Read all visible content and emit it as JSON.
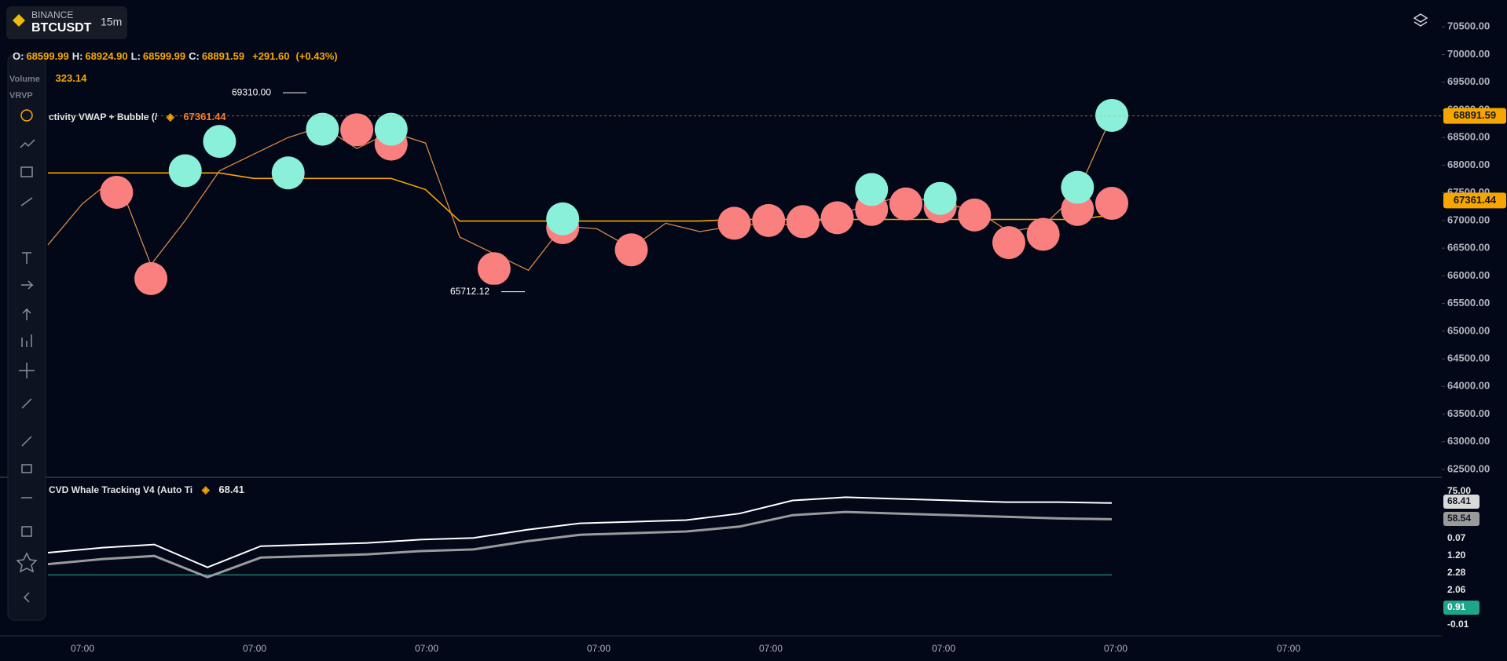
{
  "header": {
    "exchange": "BINANCE",
    "symbol": "BTCUSDT",
    "interval": "15m"
  },
  "legend": {
    "ohlc": [
      {
        "key": "O:",
        "value": "68599.99"
      },
      {
        "key": "H:",
        "value": "68924.90"
      },
      {
        "key": "L:",
        "value": "68599.99"
      },
      {
        "key": "C:",
        "value": "68891.59"
      }
    ],
    "change": "+291.60",
    "change_pct": "(+0.43%)",
    "volume_label": "Volume",
    "volume": "323.14",
    "vrvp": "VRVP",
    "indicator": "ctivity VWAP + Bubble (/",
    "indicator_value": "67361.44"
  },
  "price_chart": {
    "ylim": [
      62358,
      70986
    ],
    "yticks": [
      {
        "value": 70500,
        "label": "70500.00"
      },
      {
        "value": 70000,
        "label": "70000.00"
      },
      {
        "value": 69500,
        "label": "69500.00"
      },
      {
        "value": 69000,
        "label": "69000.00"
      },
      {
        "value": 68500,
        "label": "68500.00"
      },
      {
        "value": 68000,
        "label": "68000.00"
      },
      {
        "value": 67500,
        "label": "67500.00"
      },
      {
        "value": 67000,
        "label": "67000.00"
      },
      {
        "value": 66500,
        "label": "66500.00"
      },
      {
        "value": 66000,
        "label": "66000.00"
      },
      {
        "value": 65500,
        "label": "65500.00"
      },
      {
        "value": 65000,
        "label": "65000.00"
      },
      {
        "value": 64500,
        "label": "64500.00"
      },
      {
        "value": 64000,
        "label": "64000.00"
      },
      {
        "value": 63500,
        "label": "63500.00"
      },
      {
        "value": 63000,
        "label": "63000.00"
      },
      {
        "value": 62500,
        "label": "62500.00"
      }
    ],
    "close": [
      66560,
      67300,
      67800,
      66200,
      67000,
      67900,
      68200,
      68500,
      68700,
      68300,
      68600,
      68400,
      66700,
      66400,
      66100,
      66900,
      66850,
      66500,
      66950,
      66800,
      66900,
      66950,
      66900,
      67100,
      67300,
      67450,
      67300,
      67200,
      66800,
      66900,
      67500,
      68891.59
    ],
    "vwap": [
      67860,
      67860,
      67860,
      67860,
      67860,
      67860,
      67760,
      67760,
      67760,
      67760,
      67760,
      67560,
      66990,
      66990,
      66990,
      66990,
      66990,
      66990,
      66990,
      66990,
      67020,
      67020,
      67020,
      67020,
      67020,
      67020,
      67020,
      67020,
      67020,
      67020,
      67020,
      67100
    ],
    "sell_bubbles": [
      null,
      null,
      67510,
      65950,
      null,
      null,
      null,
      null,
      null,
      68640,
      68380,
      null,
      null,
      66130,
      null,
      66870,
      null,
      66470,
      null,
      null,
      66950,
      67000,
      66980,
      67050,
      67200,
      67300,
      67250,
      67100,
      66600,
      66750,
      67200,
      67310
    ],
    "buy_bubbles": [
      null,
      null,
      null,
      null,
      67900,
      68430,
      null,
      67860,
      68650,
      null,
      68650,
      null,
      null,
      null,
      null,
      67030,
      null,
      null,
      null,
      null,
      null,
      null,
      null,
      null,
      67560,
      null,
      67400,
      null,
      null,
      null,
      67600,
      68900
    ],
    "high_label": {
      "value": 69310,
      "label": "69310.00"
    },
    "low_label": {
      "value": 65712.12,
      "label": "65712.12"
    },
    "last_price": {
      "value": 68891.59,
      "label": "68891.59"
    },
    "vwap_price": {
      "value": 67361.44,
      "label": "67361.44"
    }
  },
  "cvd": {
    "title": "CVD Whale Tracking V4 (Auto Ti",
    "value": "68.41",
    "ylim": [
      -13,
      77
    ],
    "white": [
      38,
      41,
      43,
      29,
      42,
      43,
      44,
      46,
      47,
      52,
      56,
      57,
      58,
      62,
      70,
      72,
      71,
      70,
      69,
      69,
      68.41
    ],
    "gray": [
      31,
      34,
      36,
      23,
      35,
      36,
      37,
      39,
      40,
      45,
      49,
      50,
      51,
      54,
      61,
      63,
      62,
      61,
      60,
      59,
      58.54
    ],
    "teal": [
      24.4,
      24.4
    ],
    "labels": [
      "75.00",
      "68.41",
      "58.54",
      "0.07",
      "1.20",
      "2.28",
      "2.06",
      "0.91",
      "-0.01"
    ]
  },
  "time_axis": [
    "07:00",
    "07:00",
    "07:00",
    "07:00",
    "07:00",
    "07:00",
    "07:00",
    "07:00"
  ]
}
